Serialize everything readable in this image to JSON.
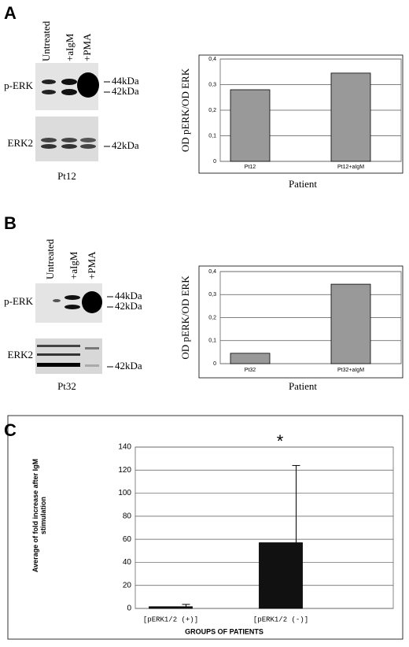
{
  "panels": [
    "A",
    "B",
    "C"
  ],
  "blots": [
    {
      "lanes": [
        "Untreated",
        "+aIgM",
        "+PMA"
      ],
      "rows": [
        "p-ERK",
        "ERK2"
      ],
      "markers": [
        "44kDa",
        "42kDa",
        "42kDa"
      ],
      "caption": "Pt12"
    },
    {
      "lanes": [
        "Untreated",
        "+aIgM",
        "+PMA"
      ],
      "rows": [
        "p-ERK",
        "ERK2"
      ],
      "markers": [
        "44kDa",
        "42kDa",
        "42kDa"
      ],
      "caption": "Pt32"
    }
  ],
  "chart_data": [
    {
      "type": "bar",
      "ylabel": "OD pERK/OD ERK",
      "xlabel": "Patient",
      "categories": [
        "Pt12",
        "Pt12+aIgM"
      ],
      "values": [
        0.28,
        0.345
      ],
      "color": "#999999",
      "ylim": [
        0,
        0.4
      ],
      "yticks": [
        0,
        {
          "value": 0.1,
          "label": "0,1"
        },
        {
          "value": 0.2,
          "label": "0,2"
        },
        {
          "value": 0.3,
          "label": "0,3"
        },
        {
          "value": 0.4,
          "label": "0,4"
        }
      ],
      "grid": true
    },
    {
      "type": "bar",
      "ylabel": "OD pERK/OD ERK",
      "xlabel": "Patient",
      "categories": [
        "Pt32",
        "Pt32+aIgM"
      ],
      "values": [
        0.045,
        0.345
      ],
      "color": "#999999",
      "ylim": [
        0,
        0.4
      ],
      "yticks": [
        0,
        {
          "value": 0.1,
          "label": "0,1"
        },
        {
          "value": 0.2,
          "label": "0,2"
        },
        {
          "value": 0.3,
          "label": "0,3"
        },
        {
          "value": 0.4,
          "label": "0,4"
        }
      ],
      "grid": true
    },
    {
      "type": "bar",
      "ylabel": "Average of fold increase after IgM stimulation",
      "xlabel": "GROUPS OF PATIENTS",
      "categories": [
        "[pERK1/2 (+)]",
        "[pERK1/2 (-)]"
      ],
      "values": [
        1.5,
        57
      ],
      "errors": [
        2,
        67
      ],
      "color": "#111111",
      "ylim": [
        0,
        140
      ],
      "yticks": [
        0,
        20,
        40,
        60,
        80,
        100,
        120,
        140
      ],
      "grid": true,
      "annotation": "*"
    }
  ]
}
